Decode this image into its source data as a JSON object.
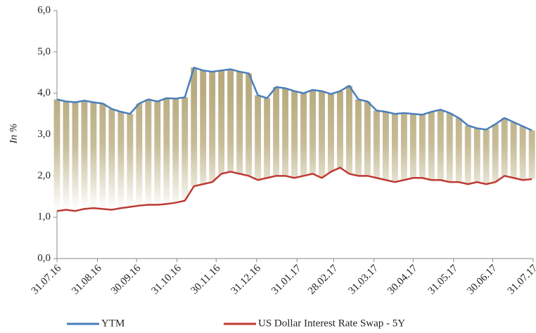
{
  "chart_data": {
    "type": "line",
    "y_label": "In %",
    "x": [
      "31.07.16",
      "07.08.16",
      "14.08.16",
      "21.08.16",
      "28.08.16",
      "04.09.16",
      "11.09.16",
      "18.09.16",
      "25.09.16",
      "02.10.16",
      "09.10.16",
      "16.10.16",
      "23.10.16",
      "30.10.16",
      "06.11.16",
      "13.11.16",
      "20.11.16",
      "27.11.16",
      "04.12.16",
      "11.12.16",
      "18.12.16",
      "25.12.16",
      "01.01.17",
      "08.01.17",
      "15.01.17",
      "22.01.17",
      "29.01.17",
      "05.02.17",
      "12.02.17",
      "19.02.17",
      "26.02.17",
      "05.03.17",
      "12.03.17",
      "19.03.17",
      "26.03.17",
      "02.04.17",
      "09.04.17",
      "16.04.17",
      "23.04.17",
      "30.04.17",
      "07.05.17",
      "14.05.17",
      "21.05.17",
      "28.05.17",
      "04.06.17",
      "11.06.17",
      "18.06.17",
      "25.06.17",
      "02.07.17",
      "09.07.17",
      "16.07.17",
      "23.07.17",
      "30.07.17"
    ],
    "series": [
      {
        "name": "YTM",
        "color": "#4a7ebb",
        "values": [
          3.85,
          3.8,
          3.78,
          3.82,
          3.78,
          3.75,
          3.62,
          3.55,
          3.5,
          3.75,
          3.85,
          3.8,
          3.88,
          3.87,
          3.9,
          4.62,
          4.55,
          4.52,
          4.55,
          4.58,
          4.52,
          4.48,
          3.95,
          3.88,
          4.15,
          4.12,
          4.05,
          4.0,
          4.08,
          4.05,
          3.98,
          4.05,
          4.18,
          3.85,
          3.8,
          3.58,
          3.55,
          3.5,
          3.52,
          3.5,
          3.48,
          3.55,
          3.6,
          3.52,
          3.4,
          3.22,
          3.15,
          3.12,
          3.25,
          3.4,
          3.3,
          3.2,
          3.1
        ]
      },
      {
        "name": "US Dollar Interest Rate Swap - 5Y",
        "color": "#be3a34",
        "values": [
          1.15,
          1.18,
          1.15,
          1.2,
          1.22,
          1.2,
          1.18,
          1.22,
          1.25,
          1.28,
          1.3,
          1.3,
          1.32,
          1.35,
          1.4,
          1.75,
          1.8,
          1.85,
          2.05,
          2.1,
          2.05,
          2.0,
          1.9,
          1.95,
          2.0,
          2.0,
          1.95,
          2.0,
          2.05,
          1.95,
          2.1,
          2.2,
          2.05,
          2.0,
          2.0,
          1.95,
          1.9,
          1.85,
          1.9,
          1.95,
          1.95,
          1.9,
          1.9,
          1.85,
          1.85,
          1.8,
          1.85,
          1.8,
          1.85,
          2.0,
          1.95,
          1.9,
          1.92
        ]
      }
    ],
    "xlim": [
      "31.07.16",
      "31.07.17"
    ],
    "xticks": [
      "31.07.16",
      "31.08.16",
      "30.09.16",
      "31.10.16",
      "30.11.16",
      "31.12.16",
      "31.01.17",
      "28.02.17",
      "31.03.17",
      "30.04.17",
      "31.05.17",
      "30.06.17",
      "31.07.17"
    ],
    "ylim": [
      0,
      6
    ],
    "yticks": [
      {
        "value": 0,
        "label": "0,0"
      },
      {
        "value": 1,
        "label": "1,0"
      },
      {
        "value": 2,
        "label": "2,0"
      },
      {
        "value": 3,
        "label": "3,0"
      },
      {
        "value": 4,
        "label": "4,0"
      },
      {
        "value": 5,
        "label": "5,0"
      },
      {
        "value": 6,
        "label": "6,0"
      }
    ],
    "legend": "bottom"
  }
}
